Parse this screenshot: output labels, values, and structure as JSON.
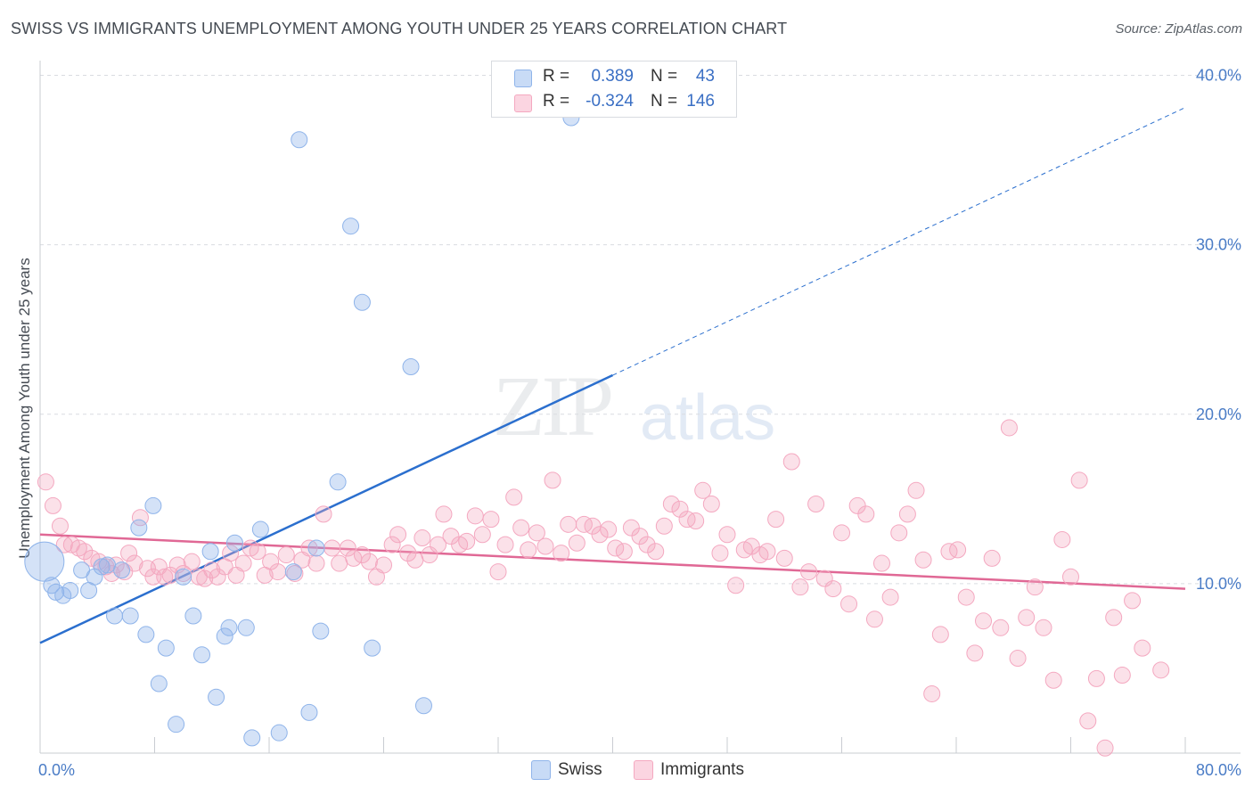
{
  "title": "SWISS VS IMMIGRANTS UNEMPLOYMENT AMONG YOUTH UNDER 25 YEARS CORRELATION CHART",
  "source": "Source: ZipAtlas.com",
  "watermark": {
    "zip": "ZIP",
    "atlas": "atlas"
  },
  "colors": {
    "swiss": "#8fb4ea",
    "swiss_line": "#2b6fce",
    "immigrants": "#f4a8c0",
    "immigrants_line": "#e06895",
    "tick": "#4a7cc6",
    "grid": "#d9dce1"
  },
  "legend": {
    "swiss": {
      "r_label": "R =",
      "r_value": "0.389",
      "n_label": "N =",
      "n_value": "43"
    },
    "immigrants": {
      "r_label": "R =",
      "r_value": "-0.324",
      "n_label": "N =",
      "n_value": "146"
    }
  },
  "bottom_legend": {
    "swiss": "Swiss",
    "immigrants": "Immigrants"
  },
  "chart_data": {
    "type": "scatter",
    "title": "SWISS VS IMMIGRANTS UNEMPLOYMENT AMONG YOUTH UNDER 25 YEARS CORRELATION CHART",
    "xlabel": "",
    "ylabel": "Unemployment Among Youth under 25 years",
    "xlim": [
      0,
      80
    ],
    "ylim": [
      0,
      40.5
    ],
    "x_tick_labels": [
      "0.0%",
      "80.0%"
    ],
    "y_ticks": [
      10,
      20,
      30,
      40
    ],
    "y_tick_labels": [
      "10.0%",
      "20.0%",
      "30.0%",
      "40.0%"
    ],
    "series": [
      {
        "name": "Swiss",
        "r": 0.389,
        "n": 43,
        "trend": {
          "x0": 0,
          "y0": 6.5,
          "x1": 40,
          "y1": 22.3,
          "dashed_to_x": 80,
          "dashed_to_y": 38.1
        },
        "points": [
          [
            0.3,
            11.3
          ],
          [
            0.8,
            9.9
          ],
          [
            1.1,
            9.5
          ],
          [
            1.6,
            9.3
          ],
          [
            2.1,
            9.6
          ],
          [
            2.9,
            10.8
          ],
          [
            3.4,
            9.6
          ],
          [
            3.8,
            10.4
          ],
          [
            4.3,
            11.0
          ],
          [
            4.7,
            11.1
          ],
          [
            5.7,
            10.8
          ],
          [
            5.2,
            8.1
          ],
          [
            6.3,
            8.1
          ],
          [
            6.9,
            13.3
          ],
          [
            7.4,
            7.0
          ],
          [
            7.9,
            14.6
          ],
          [
            8.3,
            4.1
          ],
          [
            8.8,
            6.2
          ],
          [
            9.5,
            1.7
          ],
          [
            10.0,
            10.4
          ],
          [
            10.7,
            8.1
          ],
          [
            11.3,
            5.8
          ],
          [
            11.9,
            11.9
          ],
          [
            12.3,
            3.3
          ],
          [
            12.9,
            6.9
          ],
          [
            13.2,
            7.4
          ],
          [
            13.6,
            12.4
          ],
          [
            14.4,
            7.4
          ],
          [
            14.8,
            0.9
          ],
          [
            15.4,
            13.2
          ],
          [
            16.7,
            1.2
          ],
          [
            17.7,
            10.7
          ],
          [
            18.1,
            36.2
          ],
          [
            18.8,
            2.4
          ],
          [
            19.3,
            12.1
          ],
          [
            19.6,
            7.2
          ],
          [
            20.8,
            16.0
          ],
          [
            21.7,
            31.1
          ],
          [
            22.5,
            26.6
          ],
          [
            23.2,
            6.2
          ],
          [
            25.9,
            22.8
          ],
          [
            26.8,
            2.8
          ],
          [
            37.1,
            37.5
          ]
        ]
      },
      {
        "name": "Immigrants",
        "r": -0.324,
        "n": 146,
        "trend": {
          "x0": 0,
          "y0": 12.9,
          "x1": 80,
          "y1": 9.7
        },
        "points": [
          [
            0.4,
            16.0
          ],
          [
            0.9,
            14.6
          ],
          [
            1.4,
            13.4
          ],
          [
            1.7,
            12.3
          ],
          [
            2.2,
            12.3
          ],
          [
            2.7,
            12.1
          ],
          [
            3.1,
            11.9
          ],
          [
            3.6,
            11.5
          ],
          [
            4.1,
            11.3
          ],
          [
            4.6,
            11.0
          ],
          [
            5.0,
            10.6
          ],
          [
            5.3,
            11.1
          ],
          [
            5.9,
            10.7
          ],
          [
            6.2,
            11.8
          ],
          [
            6.6,
            11.2
          ],
          [
            7.0,
            13.9
          ],
          [
            7.5,
            10.9
          ],
          [
            7.9,
            10.4
          ],
          [
            8.3,
            11.0
          ],
          [
            8.7,
            10.4
          ],
          [
            9.1,
            10.5
          ],
          [
            9.6,
            11.1
          ],
          [
            10.0,
            10.6
          ],
          [
            10.6,
            11.3
          ],
          [
            11.1,
            10.4
          ],
          [
            11.5,
            10.3
          ],
          [
            12.0,
            10.8
          ],
          [
            12.4,
            10.4
          ],
          [
            12.9,
            11.0
          ],
          [
            13.3,
            11.8
          ],
          [
            13.7,
            10.5
          ],
          [
            14.2,
            11.2
          ],
          [
            14.7,
            12.1
          ],
          [
            15.2,
            11.9
          ],
          [
            15.7,
            10.5
          ],
          [
            16.1,
            11.3
          ],
          [
            16.6,
            10.7
          ],
          [
            17.2,
            11.7
          ],
          [
            17.8,
            10.6
          ],
          [
            18.3,
            11.4
          ],
          [
            18.8,
            12.1
          ],
          [
            19.3,
            11.2
          ],
          [
            19.8,
            14.1
          ],
          [
            20.4,
            12.1
          ],
          [
            20.9,
            11.2
          ],
          [
            21.5,
            12.1
          ],
          [
            21.9,
            11.5
          ],
          [
            22.5,
            11.7
          ],
          [
            23.0,
            11.3
          ],
          [
            23.5,
            10.4
          ],
          [
            24.0,
            11.1
          ],
          [
            24.6,
            12.3
          ],
          [
            25.0,
            12.9
          ],
          [
            25.7,
            11.8
          ],
          [
            26.2,
            11.4
          ],
          [
            26.7,
            12.7
          ],
          [
            27.2,
            11.7
          ],
          [
            27.8,
            12.3
          ],
          [
            28.2,
            14.1
          ],
          [
            28.7,
            12.8
          ],
          [
            29.3,
            12.3
          ],
          [
            29.8,
            12.5
          ],
          [
            30.4,
            14.0
          ],
          [
            30.9,
            12.9
          ],
          [
            31.5,
            13.8
          ],
          [
            32.0,
            10.7
          ],
          [
            32.5,
            12.3
          ],
          [
            33.1,
            15.1
          ],
          [
            33.6,
            13.3
          ],
          [
            34.1,
            12.0
          ],
          [
            34.7,
            13.0
          ],
          [
            35.3,
            12.2
          ],
          [
            35.8,
            16.1
          ],
          [
            36.4,
            11.8
          ],
          [
            36.9,
            13.5
          ],
          [
            37.5,
            12.4
          ],
          [
            38.0,
            13.5
          ],
          [
            38.6,
            13.4
          ],
          [
            39.1,
            12.9
          ],
          [
            39.7,
            13.2
          ],
          [
            40.2,
            12.1
          ],
          [
            40.8,
            11.9
          ],
          [
            41.3,
            13.3
          ],
          [
            41.9,
            12.8
          ],
          [
            42.4,
            12.3
          ],
          [
            43.0,
            11.9
          ],
          [
            43.6,
            13.4
          ],
          [
            44.1,
            14.7
          ],
          [
            44.7,
            14.4
          ],
          [
            45.2,
            13.8
          ],
          [
            45.8,
            13.7
          ],
          [
            46.3,
            15.5
          ],
          [
            46.9,
            14.7
          ],
          [
            47.5,
            11.8
          ],
          [
            48.0,
            12.9
          ],
          [
            48.6,
            9.9
          ],
          [
            49.2,
            12.0
          ],
          [
            49.7,
            12.2
          ],
          [
            50.3,
            11.7
          ],
          [
            50.8,
            11.9
          ],
          [
            51.4,
            13.8
          ],
          [
            52.0,
            11.5
          ],
          [
            52.5,
            17.2
          ],
          [
            53.1,
            9.8
          ],
          [
            53.7,
            10.7
          ],
          [
            54.2,
            14.7
          ],
          [
            54.8,
            10.3
          ],
          [
            55.4,
            9.7
          ],
          [
            56.0,
            13.0
          ],
          [
            56.5,
            8.8
          ],
          [
            57.1,
            14.6
          ],
          [
            57.7,
            14.1
          ],
          [
            58.3,
            7.9
          ],
          [
            58.8,
            11.2
          ],
          [
            59.4,
            9.2
          ],
          [
            60.0,
            13.0
          ],
          [
            60.6,
            14.1
          ],
          [
            61.2,
            15.5
          ],
          [
            61.7,
            11.4
          ],
          [
            62.3,
            3.5
          ],
          [
            62.9,
            7.0
          ],
          [
            63.5,
            11.9
          ],
          [
            64.1,
            12.0
          ],
          [
            64.7,
            9.2
          ],
          [
            65.3,
            5.9
          ],
          [
            65.9,
            7.8
          ],
          [
            66.5,
            11.5
          ],
          [
            67.1,
            7.4
          ],
          [
            67.7,
            19.2
          ],
          [
            68.3,
            5.6
          ],
          [
            68.9,
            8.0
          ],
          [
            69.5,
            9.8
          ],
          [
            70.1,
            7.4
          ],
          [
            70.8,
            4.3
          ],
          [
            71.4,
            12.6
          ],
          [
            72.0,
            10.4
          ],
          [
            72.6,
            16.1
          ],
          [
            73.2,
            1.9
          ],
          [
            73.8,
            4.4
          ],
          [
            74.4,
            0.3
          ],
          [
            75.0,
            8.0
          ],
          [
            75.6,
            4.6
          ],
          [
            76.3,
            9.0
          ],
          [
            77.0,
            6.2
          ],
          [
            78.3,
            4.9
          ]
        ]
      }
    ]
  }
}
